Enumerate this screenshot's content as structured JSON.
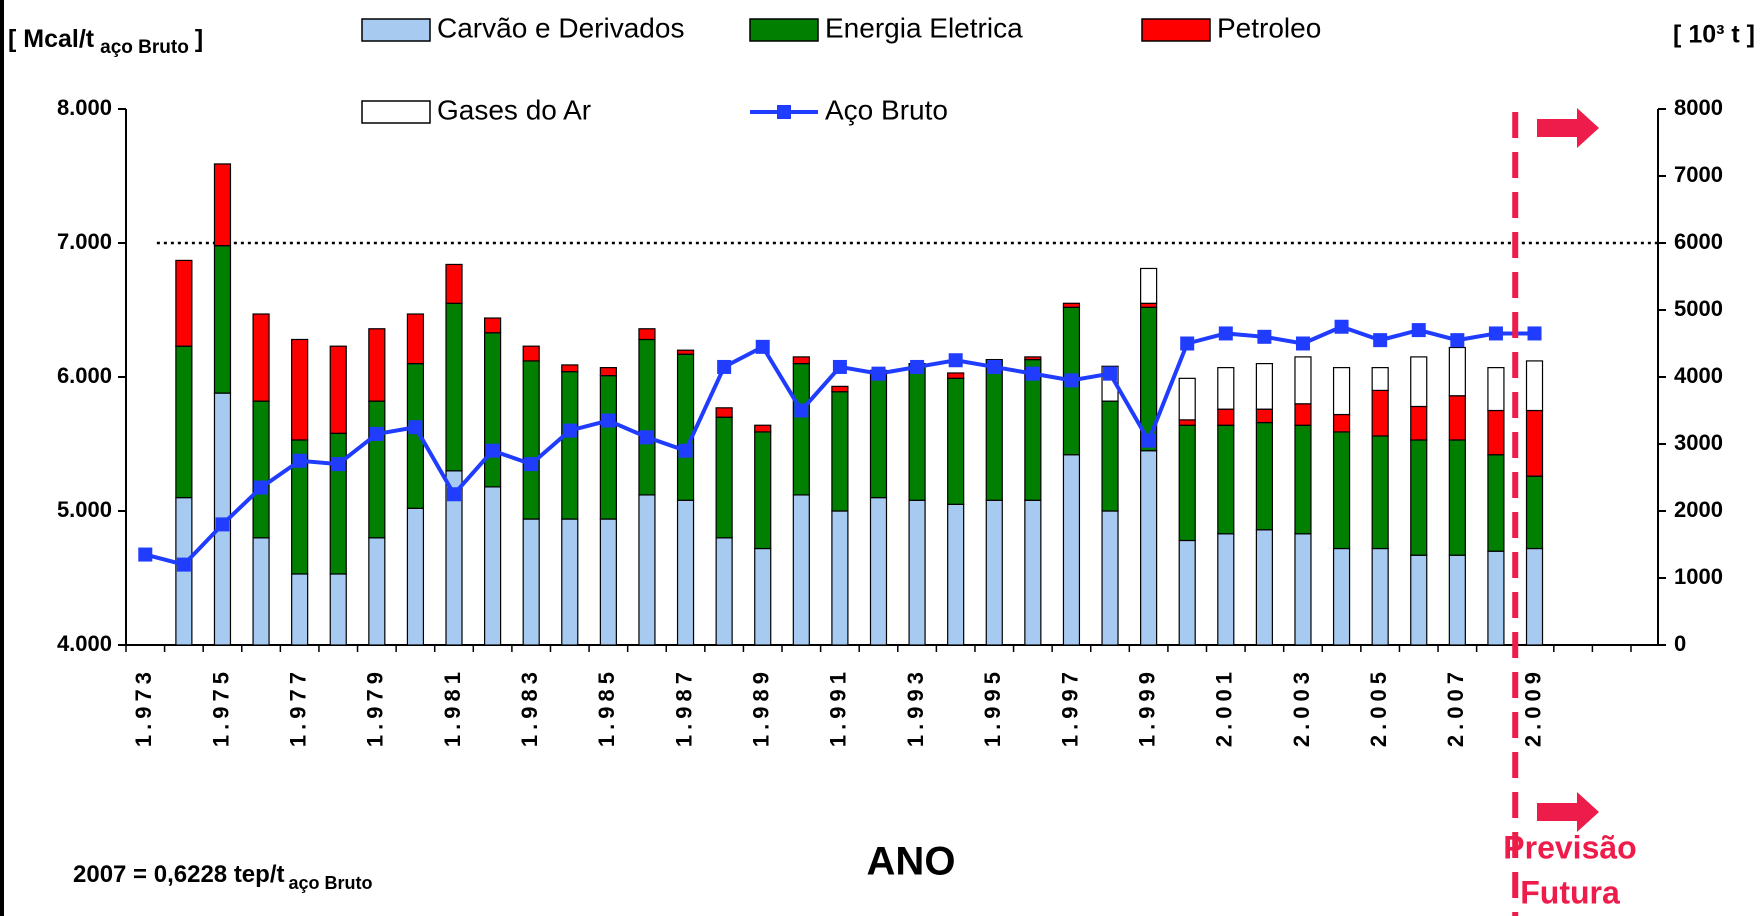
{
  "chart_data": {
    "type": "bar",
    "stacked": true,
    "categories": [
      "1.973",
      null,
      "1.975",
      null,
      "1.977",
      null,
      "1.979",
      null,
      "1.981",
      null,
      "1.983",
      null,
      "1.985",
      null,
      "1.987",
      null,
      "1.989",
      null,
      "1.991",
      null,
      "1.993",
      null,
      "1.995",
      null,
      "1.997",
      null,
      "1.999",
      null,
      "2.001",
      null,
      "2.003",
      null,
      "2.005",
      null,
      "2.007",
      null,
      "2.009"
    ],
    "series": [
      {
        "name": "Carvão e Derivados",
        "color": "#a6caf0",
        "values": [
          null,
          5100,
          5880,
          4800,
          4530,
          4530,
          4800,
          5020,
          5300,
          5180,
          4940,
          4940,
          4940,
          5120,
          5080,
          4800,
          4720,
          5120,
          5000,
          5100,
          5080,
          5050,
          5080,
          5080,
          5420,
          5000,
          5450,
          4780,
          4830,
          4860,
          4830,
          4720,
          4720,
          4670,
          4670,
          4700,
          4720
        ]
      },
      {
        "name": "Energia Eletrica",
        "color": "#007f00",
        "values": [
          null,
          1130,
          1100,
          1020,
          1000,
          1050,
          1020,
          1080,
          1250,
          1150,
          1180,
          1100,
          1070,
          1160,
          1090,
          900,
          870,
          980,
          890,
          950,
          1020,
          940,
          1050,
          1050,
          1100,
          820,
          1070,
          860,
          810,
          800,
          810,
          870,
          840,
          860,
          860,
          720,
          540
        ]
      },
      {
        "name": "Petroleo",
        "color": "#ff0000",
        "values": [
          null,
          640,
          610,
          650,
          750,
          650,
          540,
          370,
          290,
          110,
          110,
          50,
          60,
          80,
          30,
          70,
          50,
          50,
          40,
          0,
          0,
          40,
          0,
          20,
          30,
          0,
          30,
          40,
          120,
          100,
          160,
          130,
          340,
          250,
          330,
          330,
          490
        ]
      },
      {
        "name": "Gases do Ar",
        "color": "#ffffff",
        "values": [
          null,
          0,
          0,
          0,
          0,
          0,
          0,
          0,
          0,
          0,
          0,
          0,
          0,
          0,
          0,
          0,
          0,
          0,
          0,
          0,
          0,
          0,
          0,
          0,
          0,
          260,
          260,
          310,
          310,
          340,
          350,
          350,
          170,
          370,
          360,
          320,
          370
        ]
      },
      {
        "name": "Aço Bruto",
        "type": "line",
        "axis": "y2",
        "color": "#1f3cff",
        "values": [
          1350,
          1200,
          1800,
          2350,
          2750,
          2700,
          3150,
          3250,
          2250,
          2900,
          2700,
          3200,
          3350,
          3100,
          2900,
          4150,
          4450,
          3500,
          4150,
          4050,
          4150,
          4250,
          4150,
          4050,
          3950,
          4050,
          3050,
          4500,
          4650,
          4600,
          4500,
          4750,
          4550,
          4700,
          4550,
          4650,
          4650
        ]
      }
    ],
    "ylim": [
      4000,
      8000
    ],
    "yticks": [
      {
        "value": 4000,
        "label": "4.000"
      },
      {
        "value": 5000,
        "label": "5.000"
      },
      {
        "value": 6000,
        "label": "6.000"
      },
      {
        "value": 7000,
        "label": "7.000"
      },
      {
        "value": 8000,
        "label": "8.000"
      }
    ],
    "y2lim": [
      0,
      8000
    ],
    "y2ticks": [
      0,
      1000,
      2000,
      3000,
      4000,
      5000,
      6000,
      7000,
      8000
    ],
    "reference_line": 7000,
    "ylabel": "[ Mcal/t",
    "ylabel_sub": "aço Bruto",
    "ylabel_close": "]",
    "y2label": "[ 10³ t ]",
    "xlabel": "ANO",
    "note": "2007 = 0,6228 tep/t",
    "note_sub": "aço Bruto",
    "forecast": [
      "Previsão",
      "Futura"
    ]
  }
}
